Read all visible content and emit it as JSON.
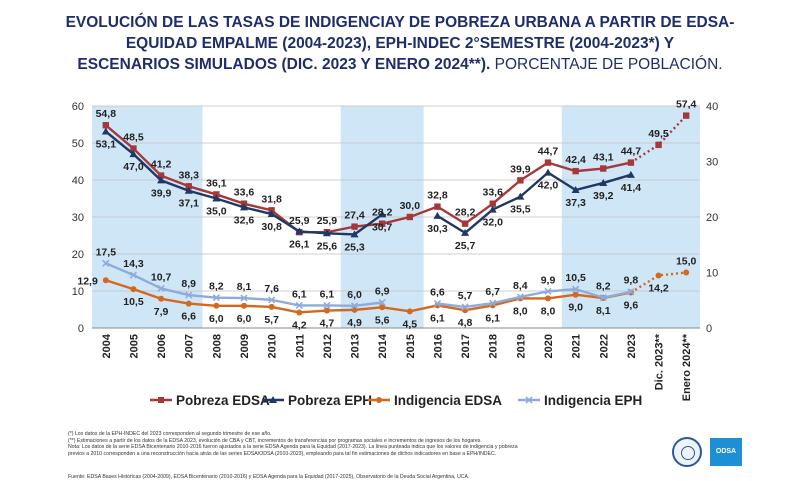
{
  "title": {
    "line1": "EVOLUCIÓN DE LAS TASAS DE INDIGENCIAY DE POBREZA URBANA A PARTIR DE EDSA-",
    "line2": "EQUIDAD EMPALME (2004-2023), EPH-INDEC 2°SEMESTRE (2004-2023*) Y",
    "line3": "ESCENARIOS SIMULADOS (DIC. 2023 Y ENERO 2024**).",
    "line3_suffix": " PORCENTAJE DE POBLACIÓN."
  },
  "chart_data": {
    "type": "line",
    "categories": [
      "2004",
      "2005",
      "2006",
      "2007",
      "2008",
      "2009",
      "2010",
      "2011",
      "2012",
      "2013",
      "2014",
      "2015",
      "2016",
      "2017",
      "2018",
      "2019",
      "2020",
      "2021",
      "2022",
      "2023",
      "Dic. 2023**",
      "Enero 2024**"
    ],
    "y_left": {
      "min": 0,
      "max": 60,
      "ticks": [
        0,
        10,
        20,
        30,
        40,
        50,
        60
      ]
    },
    "y_right": {
      "min": 0,
      "max": 40,
      "ticks": [
        0,
        10,
        20,
        30,
        40
      ]
    },
    "shaded_bands": [
      [
        0,
        3
      ],
      [
        9,
        11
      ],
      [
        17,
        21
      ]
    ],
    "grid": true,
    "legend_position": "bottom",
    "series": [
      {
        "name": "Pobreza EDSA",
        "color": "#a5383b",
        "marker": "square",
        "values": [
          54.8,
          48.5,
          41.2,
          38.3,
          36.1,
          33.6,
          31.8,
          25.9,
          25.9,
          27.4,
          28.2,
          30.0,
          32.8,
          28.2,
          33.6,
          39.9,
          44.7,
          42.4,
          43.1,
          44.7,
          49.5,
          57.4
        ],
        "projected_from": 19
      },
      {
        "name": "Pobreza EPH",
        "color": "#1f3864",
        "marker": "triangle",
        "values": [
          53.1,
          47.0,
          39.9,
          37.1,
          35.0,
          32.6,
          30.8,
          26.1,
          25.6,
          25.3,
          30.7,
          null,
          30.3,
          25.7,
          32.0,
          35.5,
          42.0,
          37.3,
          39.2,
          41.4,
          null,
          null
        ]
      },
      {
        "name": "Indigencia EDSA",
        "color": "#d2691e",
        "marker": "circle",
        "values": [
          12.9,
          10.5,
          7.9,
          6.6,
          6.0,
          6.0,
          5.7,
          4.2,
          4.7,
          4.9,
          5.6,
          4.5,
          6.1,
          4.8,
          6.1,
          8.0,
          8.0,
          9.0,
          8.1,
          9.6,
          14.2,
          15.0
        ],
        "projected_from": 19
      },
      {
        "name": "Indigencia EPH",
        "color": "#8faadc",
        "marker": "x",
        "values": [
          17.5,
          14.3,
          10.7,
          8.9,
          8.2,
          8.1,
          7.6,
          6.1,
          6.1,
          6.0,
          6.9,
          null,
          6.6,
          5.7,
          6.7,
          8.4,
          9.9,
          10.5,
          8.2,
          9.8,
          null,
          null
        ]
      }
    ],
    "data_labels": [
      {
        "text": "54,8",
        "i": 0,
        "v": 54.8,
        "pos": "above"
      },
      {
        "text": "48,5",
        "i": 1,
        "v": 48.5,
        "pos": "above"
      },
      {
        "text": "41,2",
        "i": 2,
        "v": 41.2,
        "pos": "above"
      },
      {
        "text": "38,3",
        "i": 3,
        "v": 38.3,
        "pos": "above"
      },
      {
        "text": "36,1",
        "i": 4,
        "v": 36.1,
        "pos": "above"
      },
      {
        "text": "33,6",
        "i": 5,
        "v": 33.6,
        "pos": "above"
      },
      {
        "text": "31,8",
        "i": 6,
        "v": 31.8,
        "pos": "above"
      },
      {
        "text": "25,9",
        "i": 7,
        "v": 25.9,
        "pos": "above"
      },
      {
        "text": "25,9",
        "i": 8,
        "v": 25.9,
        "pos": "above"
      },
      {
        "text": "27,4",
        "i": 9,
        "v": 27.4,
        "pos": "above"
      },
      {
        "text": "28,2",
        "i": 10,
        "v": 28.2,
        "pos": "above"
      },
      {
        "text": "30,0",
        "i": 11,
        "v": 30.0,
        "pos": "above"
      },
      {
        "text": "32,8",
        "i": 12,
        "v": 32.8,
        "pos": "above"
      },
      {
        "text": "28,2",
        "i": 13,
        "v": 28.2,
        "pos": "above"
      },
      {
        "text": "33,6",
        "i": 14,
        "v": 33.6,
        "pos": "above"
      },
      {
        "text": "39,9",
        "i": 15,
        "v": 39.9,
        "pos": "above"
      },
      {
        "text": "44,7",
        "i": 16,
        "v": 44.7,
        "pos": "above"
      },
      {
        "text": "42,4",
        "i": 17,
        "v": 42.4,
        "pos": "above"
      },
      {
        "text": "43,1",
        "i": 18,
        "v": 43.1,
        "pos": "above"
      },
      {
        "text": "44,7",
        "i": 19,
        "v": 44.7,
        "pos": "above"
      },
      {
        "text": "49,5",
        "i": 20,
        "v": 49.5,
        "pos": "above"
      },
      {
        "text": "57,4",
        "i": 21,
        "v": 57.4,
        "pos": "above"
      },
      {
        "text": "53,1",
        "i": 0,
        "v": 53.1,
        "pos": "below"
      },
      {
        "text": "47,0",
        "i": 1,
        "v": 47.0,
        "pos": "below"
      },
      {
        "text": "39,9",
        "i": 2,
        "v": 39.9,
        "pos": "below"
      },
      {
        "text": "37,1",
        "i": 3,
        "v": 37.1,
        "pos": "below"
      },
      {
        "text": "35,0",
        "i": 4,
        "v": 35.0,
        "pos": "below"
      },
      {
        "text": "32,6",
        "i": 5,
        "v": 32.6,
        "pos": "below"
      },
      {
        "text": "30,8",
        "i": 6,
        "v": 30.8,
        "pos": "below"
      },
      {
        "text": "26,1",
        "i": 7,
        "v": 26.1,
        "pos": "below"
      },
      {
        "text": "25,6",
        "i": 8,
        "v": 25.6,
        "pos": "below"
      },
      {
        "text": "25,3",
        "i": 9,
        "v": 25.3,
        "pos": "below"
      },
      {
        "text": "30,7",
        "i": 10,
        "v": 30.7,
        "pos": "below"
      },
      {
        "text": "30,3",
        "i": 12,
        "v": 30.3,
        "pos": "below"
      },
      {
        "text": "25,7",
        "i": 13,
        "v": 25.7,
        "pos": "below"
      },
      {
        "text": "32,0",
        "i": 14,
        "v": 32.0,
        "pos": "below"
      },
      {
        "text": "35,5",
        "i": 15,
        "v": 35.5,
        "pos": "below"
      },
      {
        "text": "42,0",
        "i": 16,
        "v": 42.0,
        "pos": "below"
      },
      {
        "text": "37,3",
        "i": 17,
        "v": 37.3,
        "pos": "below"
      },
      {
        "text": "39,2",
        "i": 18,
        "v": 39.2,
        "pos": "below"
      },
      {
        "text": "41,4",
        "i": 19,
        "v": 41.4,
        "pos": "below"
      },
      {
        "text": "17,5",
        "i": 0,
        "v": 17.5,
        "pos": "above"
      },
      {
        "text": "14,3",
        "i": 1,
        "v": 14.3,
        "pos": "above"
      },
      {
        "text": "10,7",
        "i": 2,
        "v": 10.7,
        "pos": "above"
      },
      {
        "text": "8,9",
        "i": 3,
        "v": 8.9,
        "pos": "above"
      },
      {
        "text": "8,2",
        "i": 4,
        "v": 8.2,
        "pos": "above"
      },
      {
        "text": "8,1",
        "i": 5,
        "v": 8.1,
        "pos": "above"
      },
      {
        "text": "7,6",
        "i": 6,
        "v": 7.6,
        "pos": "above"
      },
      {
        "text": "6,1",
        "i": 7,
        "v": 6.1,
        "pos": "above"
      },
      {
        "text": "6,1",
        "i": 8,
        "v": 6.1,
        "pos": "above"
      },
      {
        "text": "6,0",
        "i": 9,
        "v": 6.0,
        "pos": "above"
      },
      {
        "text": "6,9",
        "i": 10,
        "v": 6.9,
        "pos": "above"
      },
      {
        "text": "6,6",
        "i": 12,
        "v": 6.6,
        "pos": "above"
      },
      {
        "text": "5,7",
        "i": 13,
        "v": 5.7,
        "pos": "above"
      },
      {
        "text": "6,7",
        "i": 14,
        "v": 6.7,
        "pos": "above"
      },
      {
        "text": "8,4",
        "i": 15,
        "v": 8.4,
        "pos": "above"
      },
      {
        "text": "9,9",
        "i": 16,
        "v": 9.9,
        "pos": "above"
      },
      {
        "text": "10,5",
        "i": 17,
        "v": 10.5,
        "pos": "above"
      },
      {
        "text": "8,2",
        "i": 18,
        "v": 8.2,
        "pos": "above"
      },
      {
        "text": "9,8",
        "i": 19,
        "v": 9.8,
        "pos": "above"
      },
      {
        "text": "15,0",
        "i": 21,
        "v": 15.0,
        "pos": "above"
      },
      {
        "text": "12,9",
        "i": 0,
        "v": 12.9,
        "pos": "left"
      },
      {
        "text": "10,5",
        "i": 1,
        "v": 10.5,
        "pos": "below"
      },
      {
        "text": "7,9",
        "i": 2,
        "v": 7.9,
        "pos": "below"
      },
      {
        "text": "6,6",
        "i": 3,
        "v": 6.6,
        "pos": "below"
      },
      {
        "text": "6,0",
        "i": 4,
        "v": 6.0,
        "pos": "below"
      },
      {
        "text": "6,0",
        "i": 5,
        "v": 6.0,
        "pos": "below"
      },
      {
        "text": "5,7",
        "i": 6,
        "v": 5.7,
        "pos": "below"
      },
      {
        "text": "4,2",
        "i": 7,
        "v": 4.2,
        "pos": "below"
      },
      {
        "text": "4,7",
        "i": 8,
        "v": 4.7,
        "pos": "below"
      },
      {
        "text": "4,9",
        "i": 9,
        "v": 4.9,
        "pos": "below"
      },
      {
        "text": "5,6",
        "i": 10,
        "v": 5.6,
        "pos": "below"
      },
      {
        "text": "4,5",
        "i": 11,
        "v": 4.5,
        "pos": "below"
      },
      {
        "text": "6,1",
        "i": 12,
        "v": 6.1,
        "pos": "below"
      },
      {
        "text": "4,8",
        "i": 13,
        "v": 4.8,
        "pos": "below"
      },
      {
        "text": "6,1",
        "i": 14,
        "v": 6.1,
        "pos": "below"
      },
      {
        "text": "8,0",
        "i": 15,
        "v": 8.0,
        "pos": "below"
      },
      {
        "text": "8,0",
        "i": 16,
        "v": 8.0,
        "pos": "below"
      },
      {
        "text": "9,0",
        "i": 17,
        "v": 9.0,
        "pos": "below"
      },
      {
        "text": "8,1",
        "i": 18,
        "v": 8.1,
        "pos": "below"
      },
      {
        "text": "9,6",
        "i": 19,
        "v": 9.6,
        "pos": "below"
      },
      {
        "text": "14,2",
        "i": 20,
        "v": 14.2,
        "pos": "below"
      }
    ]
  },
  "notes": [
    "(*) Los datos de la EPH-INDEC del 2023 corresponden al segundo trimestre de ese año.",
    "(**) Estimaciones a partir de los datos de la EDSA 2023, evolución de CBA y CBT, incrementos de transferencias por programas sociales e incrementos de ingresos de los hogares.",
    "Nota: Los datos de la serie EDSA Bicentenario 2010-2016 fueron ajustados a la serie EDSA Agenda para la Equidad (2017-2023). La línea punteada indica que los valores de indigencia y pobreza",
    "previos a 2010 corresponden a una reconstrucción hacia atrás de las series EDSA/ODSA (2010-2023), empleando para tal fin estimaciones de dichos indicadores en base a EPH/INDEC."
  ],
  "source": "Fuente: EDSA Bases Históricas (2004-2009), EDSA Bicentenario (2010-2016) y EDSA Agenda para la Equidad (2017-2025), Observatorio de la Deuda Social Argentina, UCA.",
  "logos": {
    "box_text": "ODSA"
  }
}
